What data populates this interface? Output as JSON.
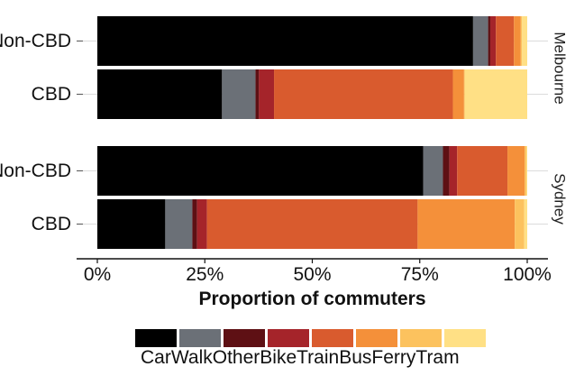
{
  "chart_data": {
    "type": "bar",
    "orientation": "horizontal",
    "stacked": true,
    "normalized": true,
    "title": "",
    "xlabel": "Proportion of commuters",
    "ylabel": "",
    "xlim": [
      0,
      1
    ],
    "x_ticks": [
      0,
      0.25,
      0.5,
      0.75,
      1.0
    ],
    "x_tick_labels": [
      "0%",
      "25%",
      "50%",
      "75%",
      "100%"
    ],
    "legend_position": "bottom",
    "grid": true,
    "series": [
      {
        "name": "Car",
        "color": "#000000"
      },
      {
        "name": "Walk",
        "color": "#6b7077"
      },
      {
        "name": "Other",
        "color": "#5e1014"
      },
      {
        "name": "Bike",
        "color": "#a5242a"
      },
      {
        "name": "Train",
        "color": "#d95b2e"
      },
      {
        "name": "Bus",
        "color": "#f4903a"
      },
      {
        "name": "Ferry",
        "color": "#fcc25e"
      },
      {
        "name": "Tram",
        "color": "#ffe085"
      }
    ],
    "facets": [
      {
        "label": "Melbourne",
        "rows": [
          {
            "category": "Non-CBD",
            "values": [
              0.874,
              0.035,
              0.005,
              0.013,
              0.042,
              0.016,
              0.003,
              0.012
            ]
          },
          {
            "category": "CBD",
            "values": [
              0.29,
              0.078,
              0.008,
              0.035,
              0.416,
              0.026,
              0.002,
              0.145
            ]
          }
        ]
      },
      {
        "label": "Sydney",
        "rows": [
          {
            "category": "Non-CBD",
            "values": [
              0.758,
              0.046,
              0.015,
              0.018,
              0.117,
              0.04,
              0.004,
              0.002
            ]
          },
          {
            "category": "CBD",
            "values": [
              0.158,
              0.063,
              0.011,
              0.023,
              0.49,
              0.226,
              0.022,
              0.007
            ]
          }
        ]
      }
    ]
  }
}
